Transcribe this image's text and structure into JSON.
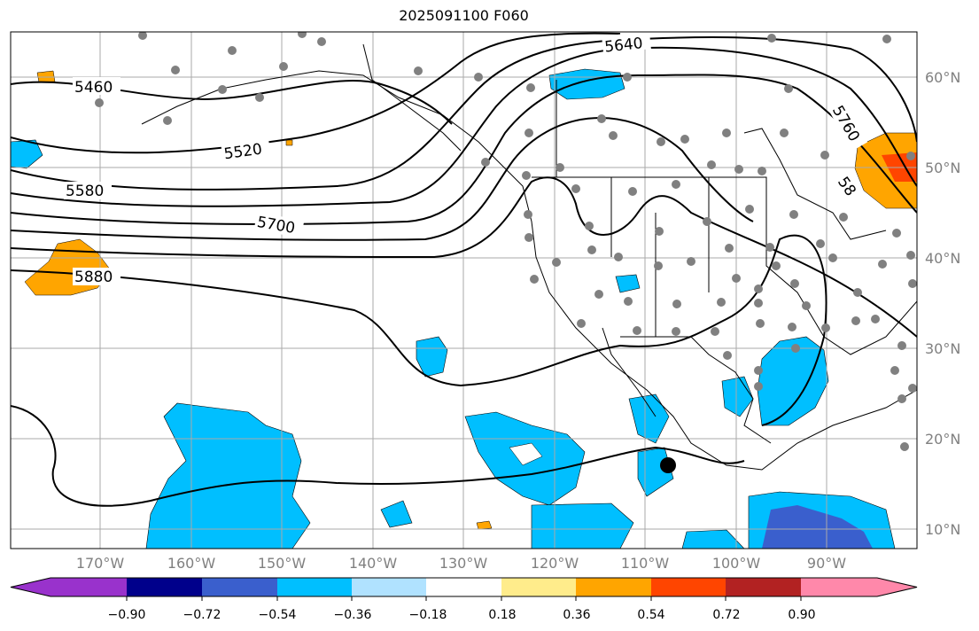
{
  "title": "2025091100 F060",
  "lat_labels": [
    "60°N",
    "50°N",
    "40°N",
    "30°N",
    "20°N",
    "10°N"
  ],
  "lon_labels": [
    "170°W",
    "160°W",
    "150°W",
    "140°W",
    "130°W",
    "120°W",
    "110°W",
    "100°W",
    "90°W"
  ],
  "contour_labels": [
    "5460",
    "5520",
    "5580",
    "5640",
    "5700",
    "5760",
    "5880",
    "58"
  ],
  "colorbar": {
    "ticks": [
      "−0.90",
      "−0.72",
      "−0.54",
      "−0.36",
      "−0.18",
      "0.18",
      "0.36",
      "0.54",
      "0.72",
      "0.90"
    ],
    "colors": [
      "#9932cc",
      "#00008b",
      "#3a5fcd",
      "#00bfff",
      "#b0e2ff",
      "#ffffff",
      "#ffec8b",
      "#ffa500",
      "#ff4500",
      "#b22222",
      "#ff88aa"
    ]
  }
}
